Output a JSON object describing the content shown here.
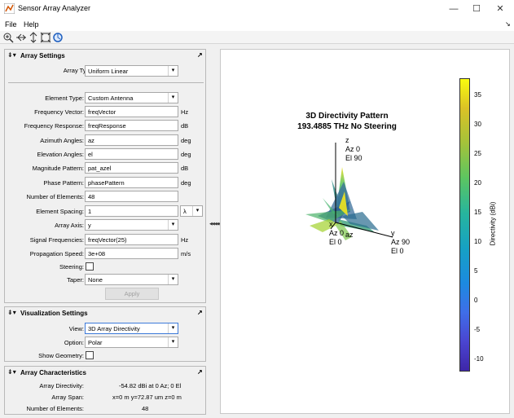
{
  "window": {
    "title": "Sensor Array Analyzer",
    "minimize": "—",
    "maximize": "☐",
    "close": "✕"
  },
  "menu": [
    "File",
    "Help"
  ],
  "toolbar": [
    "zoom-in-icon",
    "pan-icon",
    "rotate-icon",
    "fit-icon",
    "reset-view-icon"
  ],
  "array_settings": {
    "title": "Array Settings",
    "array_type_label": "Array Type:",
    "array_type_value": "Uniform Linear",
    "element_type_label": "Element Type:",
    "element_type_value": "Custom Antenna",
    "frequency_vector_label": "Frequency Vector:",
    "frequency_vector_value": "freqVector",
    "frequency_vector_unit": "Hz",
    "frequency_response_label": "Frequency Response:",
    "frequency_response_value": "freqResponse",
    "frequency_response_unit": "dB",
    "azimuth_label": "Azimuth Angles:",
    "azimuth_value": "az",
    "azimuth_unit": "deg",
    "elevation_label": "Elevation Angles:",
    "elevation_value": "el",
    "elevation_unit": "deg",
    "magnitude_label": "Magnitude Pattern:",
    "magnitude_value": "pat_azel",
    "magnitude_unit": "dB",
    "phase_label": "Phase Pattern:",
    "phase_value": "phasePattern",
    "phase_unit": "deg",
    "num_elements_label": "Number of Elements:",
    "num_elements_value": "48",
    "spacing_label": "Element Spacing:",
    "spacing_value": "1",
    "spacing_unit": "λ",
    "axis_label": "Array Axis:",
    "axis_value": "y",
    "signal_freq_label": "Signal Frequencies:",
    "signal_freq_value": "freqVector(25)",
    "signal_freq_unit": "Hz",
    "prop_speed_label": "Propagation Speed:",
    "prop_speed_value": "3e+08",
    "prop_speed_unit": "m/s",
    "steering_label": "Steering:",
    "taper_label": "Taper:",
    "taper_value": "None",
    "apply": "Apply"
  },
  "visualization_settings": {
    "title": "Visualization Settings",
    "view_label": "View:",
    "view_value": "3D Array Directivity",
    "option_label": "Option:",
    "option_value": "Polar",
    "geometry_label": "Show Geometry:"
  },
  "array_characteristics": {
    "title": "Array Characteristics",
    "directivity_label": "Array Directivity:",
    "directivity_value": "-54.82 dBi at 0 Az; 0 El",
    "span_label": "Array Span:",
    "span_value": "x=0 m y=72.87 um z=0 m",
    "elements_label": "Number of Elements:",
    "elements_value": "48"
  },
  "plot": {
    "title_line1": "3D Directivity Pattern",
    "title_line2": "193.4885 THz No Steering",
    "z_axis": [
      "z",
      "Az 0",
      "El 90"
    ],
    "y_axis": [
      "y",
      "Az 90",
      "El 0"
    ],
    "x_axis": [
      "x",
      "Az 0",
      "El 0"
    ],
    "az_label": "az",
    "colorbar_label": "Directivity (dBi)",
    "colorbar_ticks": [
      "35",
      "30",
      "25",
      "20",
      "15",
      "10",
      "5",
      "0",
      "-5",
      "-10"
    ]
  },
  "splitter": "◀◀◀◀◀◀"
}
